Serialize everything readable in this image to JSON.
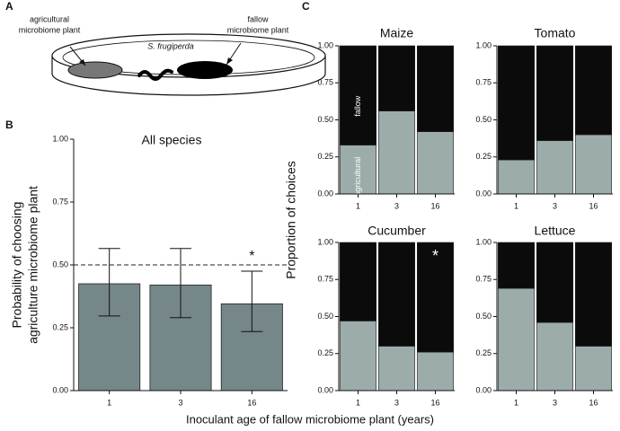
{
  "panel_labels": [
    "A",
    "B",
    "C"
  ],
  "diagram": {
    "agricultural_label": [
      "agricultural",
      "microbiome plant"
    ],
    "fallow_label": [
      "fallow",
      "microbiome plant"
    ],
    "insect_label": "S. frugiperda"
  },
  "xlabel": "Inoculant age of fallow microbiome plant (years)",
  "c_ylabel": "Proportion of choices",
  "chart_data": [
    {
      "type": "bar",
      "title": "All species",
      "ylabel": [
        "Probability of choosing",
        "agriculture microbiome plant"
      ],
      "categories": [
        "1",
        "3",
        "16"
      ],
      "values": [
        0.425,
        0.42,
        0.345
      ],
      "errors_low": [
        0.128,
        0.13,
        0.11
      ],
      "errors_high": [
        0.14,
        0.145,
        0.13
      ],
      "color": "#76878a",
      "reference_line": 0.5,
      "annotation": {
        "text": "*",
        "index": 2
      },
      "ylim": [
        0,
        1
      ],
      "yticks": [
        {
          "value": 0,
          "label": "0.00"
        },
        {
          "value": 0.25,
          "label": "0.25"
        },
        {
          "value": 0.5,
          "label": "0.50"
        },
        {
          "value": 0.75,
          "label": "0.75"
        },
        {
          "value": 1,
          "label": "1.00"
        }
      ]
    },
    {
      "type": "stacked_bar",
      "title": "Maize",
      "categories": [
        "1",
        "3",
        "16"
      ],
      "series_labels_inside": true,
      "series": [
        {
          "name": "agricultural",
          "color": "#9cacaa",
          "values": [
            0.33,
            0.56,
            0.42
          ]
        },
        {
          "name": "fallow",
          "color": "#0b0b0b",
          "values": [
            0.67,
            0.44,
            0.58
          ]
        }
      ],
      "ylim": [
        0,
        1
      ],
      "yticks": [
        {
          "value": 0,
          "label": "0.00"
        },
        {
          "value": 0.25,
          "label": "0.25"
        },
        {
          "value": 0.5,
          "label": "0.50"
        },
        {
          "value": 0.75,
          "label": "0.75"
        },
        {
          "value": 1,
          "label": "1.00"
        }
      ]
    },
    {
      "type": "stacked_bar",
      "title": "Tomato",
      "categories": [
        "1",
        "3",
        "16"
      ],
      "series": [
        {
          "color": "#9cacaa",
          "values": [
            0.23,
            0.36,
            0.4
          ]
        },
        {
          "color": "#0b0b0b",
          "values": [
            0.77,
            0.64,
            0.6
          ]
        }
      ],
      "ylim": [
        0,
        1
      ],
      "yticks": [
        {
          "value": 0,
          "label": "0.00"
        },
        {
          "value": 0.25,
          "label": "0.25"
        },
        {
          "value": 0.5,
          "label": "0.50"
        },
        {
          "value": 0.75,
          "label": "0.75"
        },
        {
          "value": 1,
          "label": "1.00"
        }
      ]
    },
    {
      "type": "stacked_bar",
      "title": "Cucumber",
      "categories": [
        "1",
        "3",
        "16"
      ],
      "annotation": {
        "text": "*",
        "index": 2
      },
      "series": [
        {
          "color": "#9cacaa",
          "values": [
            0.47,
            0.3,
            0.26
          ]
        },
        {
          "color": "#0b0b0b",
          "values": [
            0.53,
            0.7,
            0.74
          ]
        }
      ],
      "ylim": [
        0,
        1
      ],
      "yticks": [
        {
          "value": 0,
          "label": "0.00"
        },
        {
          "value": 0.25,
          "label": "0.25"
        },
        {
          "value": 0.5,
          "label": "0.50"
        },
        {
          "value": 0.75,
          "label": "0.75"
        },
        {
          "value": 1,
          "label": "1.00"
        }
      ]
    },
    {
      "type": "stacked_bar",
      "title": "Lettuce",
      "categories": [
        "1",
        "3",
        "16"
      ],
      "series": [
        {
          "color": "#9cacaa",
          "values": [
            0.69,
            0.46,
            0.3
          ]
        },
        {
          "color": "#0b0b0b",
          "values": [
            0.31,
            0.54,
            0.7
          ]
        }
      ],
      "ylim": [
        0,
        1
      ],
      "yticks": [
        {
          "value": 0,
          "label": "0.00"
        },
        {
          "value": 0.25,
          "label": "0.25"
        },
        {
          "value": 0.5,
          "label": "0.50"
        },
        {
          "value": 0.75,
          "label": "0.75"
        },
        {
          "value": 1,
          "label": "1.00"
        }
      ]
    }
  ]
}
